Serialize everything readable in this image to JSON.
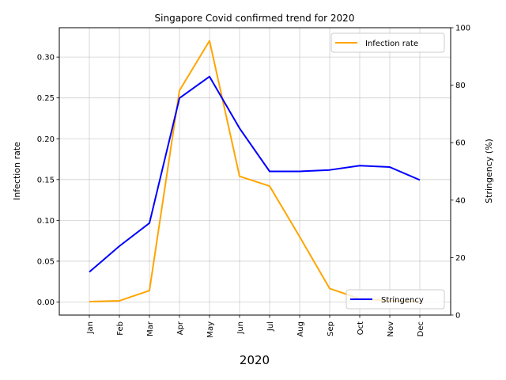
{
  "chart_data": {
    "type": "line",
    "title": "Singapore Covid confirmed trend for 2020",
    "xlabel": "2020",
    "ylabel_left": "Infection rate",
    "ylabel_right": "Stringency (%)",
    "categories": [
      "Jan",
      "Feb",
      "Mar",
      "Apr",
      "May",
      "Jun",
      "Jul",
      "Aug",
      "Sep",
      "Oct",
      "Nov",
      "Dec"
    ],
    "grid": true,
    "left_axis": {
      "ylim": [
        -0.016,
        0.336
      ],
      "ticks": [
        0.0,
        0.05,
        0.1,
        0.15,
        0.2,
        0.25,
        0.3
      ],
      "tick_labels": [
        "0.00",
        "0.05",
        "0.10",
        "0.15",
        "0.20",
        "0.25",
        "0.30"
      ]
    },
    "right_axis": {
      "ylim": [
        0,
        100
      ],
      "ticks": [
        0,
        20,
        40,
        60,
        80,
        100
      ],
      "tick_labels": [
        "0",
        "20",
        "40",
        "60",
        "80",
        "100"
      ]
    },
    "series": [
      {
        "name": "Infection rate",
        "axis": "left",
        "color": "#ffa500",
        "values": [
          0.0005,
          0.0015,
          0.014,
          0.259,
          0.32,
          0.154,
          0.142,
          0.08,
          0.0165,
          0.004,
          0.0015,
          0.0005
        ],
        "legend_position": "upper right"
      },
      {
        "name": "Stringency",
        "axis": "right",
        "color": "#0000ff",
        "values": [
          15,
          24,
          32,
          75.5,
          83,
          65,
          50,
          50,
          50.5,
          52,
          51.5,
          47
        ],
        "legend_position": "lower right"
      }
    ]
  }
}
